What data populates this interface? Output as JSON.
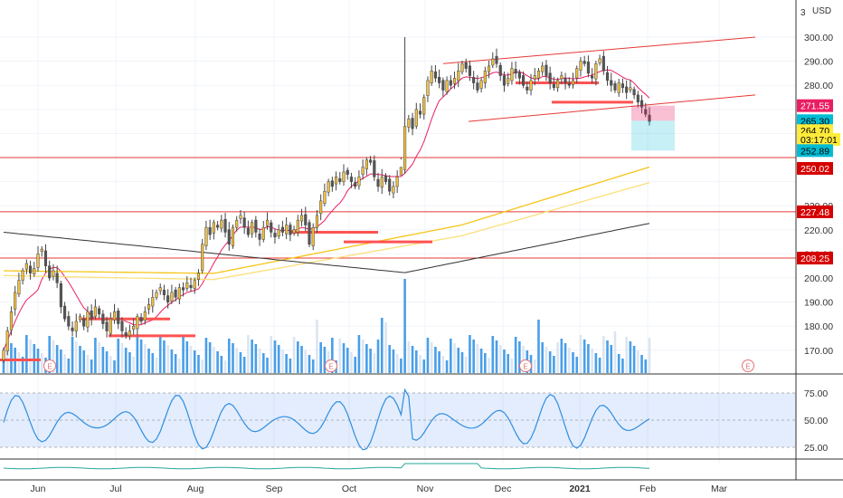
{
  "currency": "USD",
  "scale_corner": "3",
  "chart_data": {
    "type": "candlestick",
    "price_axis": {
      "ticks": [
        {
          "label": "300.00",
          "value": 300
        },
        {
          "label": "290.00",
          "value": 290
        },
        {
          "label": "280.00",
          "value": 280
        },
        {
          "label": "230.00",
          "value": 230
        },
        {
          "label": "220.00",
          "value": 220
        },
        {
          "label": "210.00",
          "value": 210
        },
        {
          "label": "200.00",
          "value": 200
        },
        {
          "label": "190.00",
          "value": 190
        },
        {
          "label": "180.00",
          "value": 180
        },
        {
          "label": "170.00",
          "value": 170
        }
      ]
    },
    "price_badges": [
      {
        "label": "271.55",
        "value": 271.55,
        "color": "#e91e63",
        "text_color": "#ffffff"
      },
      {
        "label": "265.30",
        "value": 265.3,
        "color": "#00bcd4",
        "text_color": "#000000"
      },
      {
        "label": "264.70",
        "value": 261.2,
        "color": "#ffeb3b",
        "text_color": "#000000"
      },
      {
        "label": "03:17:01",
        "value": 257.5,
        "color": "#ffeb3b",
        "text_color": "#000000"
      },
      {
        "label": "252.89",
        "value": 252.89,
        "color": "#00bcd4",
        "text_color": "#000000"
      },
      {
        "label": "250.02",
        "value": 245.5,
        "color": "#d50000",
        "text_color": "#ffffff"
      },
      {
        "label": "227.48",
        "value": 227.48,
        "color": "#d50000",
        "text_color": "#ffffff"
      },
      {
        "label": "208.25",
        "value": 208.25,
        "color": "#d50000",
        "text_color": "#ffffff"
      }
    ],
    "horizontal_lines": [
      250.02,
      227.48,
      208.25
    ],
    "time_axis": [
      "Jun",
      "Jul",
      "Aug",
      "Sep",
      "Oct",
      "Nov",
      "Dec",
      "2021",
      "Feb",
      "Mar"
    ],
    "earnings_markers": [
      "E",
      "E",
      "E",
      "E"
    ],
    "rsi_axis": [
      {
        "label": "75.00",
        "value": 75
      },
      {
        "label": "50.00",
        "value": 50
      },
      {
        "label": "25.00",
        "value": 25
      }
    ],
    "trend_channel": {
      "upper": [
        [
          490,
          289
        ],
        [
          835,
          300
        ]
      ],
      "lower": [
        [
          518,
          265
        ],
        [
          835,
          276
        ]
      ]
    },
    "colors": {
      "up": "#f0c040",
      "down": "#555555",
      "sma_fast": "#e91e63",
      "sma_mid": "#f5c518",
      "sma_slow": "#333333",
      "volume_up": "#4a9fe8",
      "volume_down": "#dbe5f2",
      "rsi": "#2f8de0",
      "support_lines": "#e53935"
    }
  }
}
